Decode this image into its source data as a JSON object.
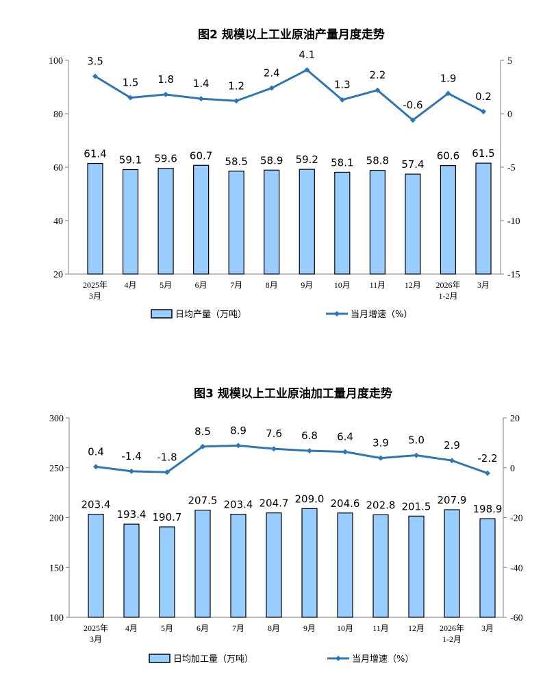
{
  "colors": {
    "bar_fill": "#99CCFF",
    "bar_stroke": "#000000",
    "line": "#2E75B6",
    "axis": "#7F7F7F"
  },
  "chart_data": [
    {
      "type": "bar+line",
      "title": "图2  规模以上工业原油产量月度走势",
      "categories": [
        "2025年\n3月",
        "4月",
        "5月",
        "6月",
        "7月",
        "8月",
        "9月",
        "10月",
        "11月",
        "12月",
        "2026年\n1-2月",
        "3月"
      ],
      "series": [
        {
          "name": "日均产量（万吨）",
          "type": "bar",
          "axis": "left",
          "values": [
            61.4,
            59.1,
            59.6,
            60.7,
            58.5,
            58.9,
            59.2,
            58.1,
            58.8,
            57.4,
            60.6,
            61.5
          ]
        },
        {
          "name": "当月增速（%）",
          "type": "line",
          "axis": "right",
          "values": [
            3.5,
            1.5,
            1.8,
            1.4,
            1.2,
            2.4,
            4.1,
            1.3,
            2.2,
            -0.6,
            1.9,
            0.2
          ]
        }
      ],
      "y_left": {
        "range": [
          20,
          100
        ],
        "ticks": [
          20,
          40,
          60,
          80,
          100
        ]
      },
      "y_right": {
        "range": [
          -15,
          5
        ],
        "ticks": [
          -15,
          -10,
          -5,
          0,
          5
        ]
      },
      "grid": false,
      "legend": "bottom"
    },
    {
      "type": "bar+line",
      "title": "图3  规模以上工业原油加工量月度走势",
      "categories": [
        "2025年\n3月",
        "4月",
        "5月",
        "6月",
        "7月",
        "8月",
        "9月",
        "10月",
        "11月",
        "12月",
        "2026年\n1-2月",
        "3月"
      ],
      "series": [
        {
          "name": "日均加工量（万吨）",
          "type": "bar",
          "axis": "left",
          "values": [
            203.4,
            193.4,
            190.7,
            207.5,
            203.4,
            204.7,
            209.0,
            204.6,
            202.8,
            201.5,
            207.9,
            198.9
          ]
        },
        {
          "name": "当月增速（%）",
          "type": "line",
          "axis": "right",
          "values": [
            0.4,
            -1.4,
            -1.8,
            8.5,
            8.9,
            7.6,
            6.8,
            6.4,
            3.9,
            5.0,
            2.9,
            -2.2
          ]
        }
      ],
      "y_left": {
        "range": [
          100,
          300
        ],
        "ticks": [
          100,
          150,
          200,
          250,
          300
        ]
      },
      "y_right": {
        "range": [
          -60,
          20
        ],
        "ticks": [
          -60,
          -40,
          -20,
          0,
          20
        ]
      },
      "grid": false,
      "legend": "bottom"
    }
  ]
}
